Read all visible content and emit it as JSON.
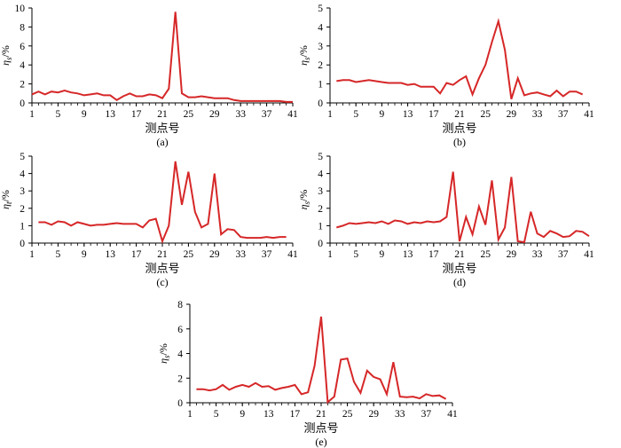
{
  "style": {
    "line_color": "#d62728",
    "axis_color": "#000000",
    "grid": false
  },
  "chart_data": [
    {
      "id": "a",
      "type": "line",
      "panel_label": "(a)",
      "xlabel": "测点号",
      "ylabel": "η",
      "ylabel_sub": "s",
      "ylabel_unit": "/%",
      "xlim": [
        1,
        41
      ],
      "ylim": [
        0,
        10
      ],
      "xticks": [
        1,
        5,
        9,
        13,
        17,
        21,
        25,
        29,
        33,
        37,
        41
      ],
      "yticks": [
        0,
        2,
        4,
        6,
        8,
        10
      ],
      "x": [
        1,
        2,
        3,
        4,
        5,
        6,
        7,
        8,
        9,
        10,
        11,
        12,
        13,
        14,
        15,
        16,
        17,
        18,
        19,
        20,
        21,
        22,
        23,
        24,
        25,
        26,
        27,
        28,
        29,
        30,
        31,
        32,
        33,
        34,
        35,
        36,
        37,
        38,
        39,
        40,
        41
      ],
      "values": [
        0.9,
        1.2,
        0.9,
        1.2,
        1.1,
        1.3,
        1.1,
        1.0,
        0.8,
        0.9,
        1.0,
        0.8,
        0.8,
        0.3,
        0.7,
        1.0,
        0.7,
        0.7,
        0.9,
        0.8,
        0.5,
        1.5,
        9.6,
        1.0,
        0.6,
        0.6,
        0.7,
        0.6,
        0.5,
        0.5,
        0.5,
        0.3,
        0.2,
        0.2,
        0.2,
        0.2,
        0.2,
        0.2,
        0.2,
        0.1,
        0.1
      ]
    },
    {
      "id": "b",
      "type": "line",
      "panel_label": "(b)",
      "xlabel": "测点号",
      "ylabel": "η",
      "ylabel_sub": "s",
      "ylabel_unit": "/%",
      "xlim": [
        1,
        41
      ],
      "ylim": [
        0,
        5
      ],
      "xticks": [
        1,
        5,
        9,
        13,
        17,
        21,
        25,
        29,
        33,
        37,
        41
      ],
      "yticks": [
        0,
        1,
        2,
        3,
        4,
        5
      ],
      "x": [
        2,
        3,
        4,
        5,
        6,
        7,
        8,
        9,
        10,
        11,
        12,
        13,
        14,
        15,
        16,
        17,
        18,
        19,
        20,
        21,
        22,
        23,
        24,
        25,
        26,
        27,
        28,
        29,
        30,
        31,
        32,
        33,
        34,
        35,
        36,
        37,
        38,
        39,
        40
      ],
      "values": [
        1.15,
        1.2,
        1.2,
        1.1,
        1.15,
        1.2,
        1.15,
        1.1,
        1.05,
        1.05,
        1.05,
        0.95,
        1.0,
        0.85,
        0.85,
        0.85,
        0.5,
        1.05,
        0.95,
        1.2,
        1.4,
        0.45,
        1.3,
        2.0,
        3.2,
        4.3,
        2.8,
        0.2,
        1.3,
        0.4,
        0.5,
        0.55,
        0.45,
        0.35,
        0.65,
        0.35,
        0.6,
        0.6,
        0.45
      ]
    },
    {
      "id": "c",
      "type": "line",
      "panel_label": "(c)",
      "xlabel": "测点号",
      "ylabel": "η",
      "ylabel_sub": "t",
      "ylabel_unit": "/%",
      "xlim": [
        1,
        41
      ],
      "ylim": [
        0,
        5
      ],
      "xticks": [
        1,
        5,
        9,
        13,
        17,
        21,
        25,
        29,
        33,
        37,
        41
      ],
      "yticks": [
        0,
        1,
        2,
        3,
        4,
        5
      ],
      "x": [
        2,
        3,
        4,
        5,
        6,
        7,
        8,
        9,
        10,
        11,
        12,
        13,
        14,
        15,
        16,
        17,
        18,
        19,
        20,
        21,
        22,
        23,
        24,
        25,
        26,
        27,
        28,
        29,
        30,
        31,
        32,
        33,
        34,
        35,
        36,
        37,
        38,
        39,
        40
      ],
      "values": [
        1.2,
        1.2,
        1.05,
        1.25,
        1.2,
        1.0,
        1.2,
        1.1,
        1.0,
        1.05,
        1.05,
        1.1,
        1.15,
        1.1,
        1.1,
        1.1,
        0.9,
        1.3,
        1.4,
        0.1,
        1.0,
        4.7,
        2.2,
        4.1,
        1.8,
        0.9,
        1.1,
        4.0,
        0.5,
        0.8,
        0.75,
        0.35,
        0.3,
        0.3,
        0.3,
        0.35,
        0.3,
        0.35,
        0.35
      ]
    },
    {
      "id": "d",
      "type": "line",
      "panel_label": "(d)",
      "xlabel": "测点号",
      "ylabel": "η",
      "ylabel_sub": "s",
      "ylabel_unit": "/%",
      "xlim": [
        1,
        41
      ],
      "ylim": [
        0,
        5
      ],
      "xticks": [
        1,
        5,
        9,
        13,
        17,
        21,
        25,
        29,
        33,
        37,
        41
      ],
      "yticks": [
        0,
        1,
        2,
        3,
        4,
        5
      ],
      "x": [
        2,
        3,
        4,
        5,
        6,
        7,
        8,
        9,
        10,
        11,
        12,
        13,
        14,
        15,
        16,
        17,
        18,
        19,
        20,
        21,
        22,
        23,
        24,
        25,
        26,
        27,
        28,
        29,
        30,
        31,
        32,
        33,
        34,
        35,
        36,
        37,
        38,
        39,
        40,
        41
      ],
      "values": [
        0.9,
        1.0,
        1.15,
        1.1,
        1.15,
        1.2,
        1.15,
        1.25,
        1.1,
        1.3,
        1.25,
        1.1,
        1.2,
        1.15,
        1.25,
        1.2,
        1.25,
        1.5,
        4.1,
        0.1,
        1.5,
        0.5,
        2.1,
        1.05,
        3.6,
        0.2,
        0.9,
        3.8,
        0.1,
        0.05,
        1.8,
        0.55,
        0.35,
        0.7,
        0.55,
        0.35,
        0.4,
        0.7,
        0.65,
        0.4
      ]
    },
    {
      "id": "e",
      "type": "line",
      "panel_label": "(e)",
      "xlabel": "测点号",
      "ylabel": "η",
      "ylabel_sub": "s",
      "ylabel_unit": "/%",
      "xlim": [
        1,
        41
      ],
      "ylim": [
        0,
        8
      ],
      "xticks": [
        1,
        5,
        9,
        13,
        17,
        21,
        25,
        29,
        33,
        37,
        41
      ],
      "yticks": [
        0,
        2,
        4,
        6,
        8
      ],
      "x": [
        2,
        3,
        4,
        5,
        6,
        7,
        8,
        9,
        10,
        11,
        12,
        13,
        14,
        15,
        16,
        17,
        18,
        19,
        20,
        21,
        22,
        23,
        24,
        25,
        26,
        27,
        28,
        29,
        30,
        31,
        32,
        33,
        34,
        35,
        36,
        37,
        38,
        39,
        40
      ],
      "values": [
        1.1,
        1.1,
        1.0,
        1.1,
        1.45,
        1.05,
        1.3,
        1.45,
        1.3,
        1.6,
        1.3,
        1.35,
        1.05,
        1.2,
        1.3,
        1.45,
        0.7,
        0.85,
        3.0,
        7.0,
        0.05,
        0.5,
        3.5,
        3.6,
        1.7,
        0.8,
        2.6,
        2.1,
        1.9,
        0.7,
        3.3,
        0.5,
        0.45,
        0.5,
        0.35,
        0.7,
        0.55,
        0.6,
        0.3
      ]
    }
  ]
}
